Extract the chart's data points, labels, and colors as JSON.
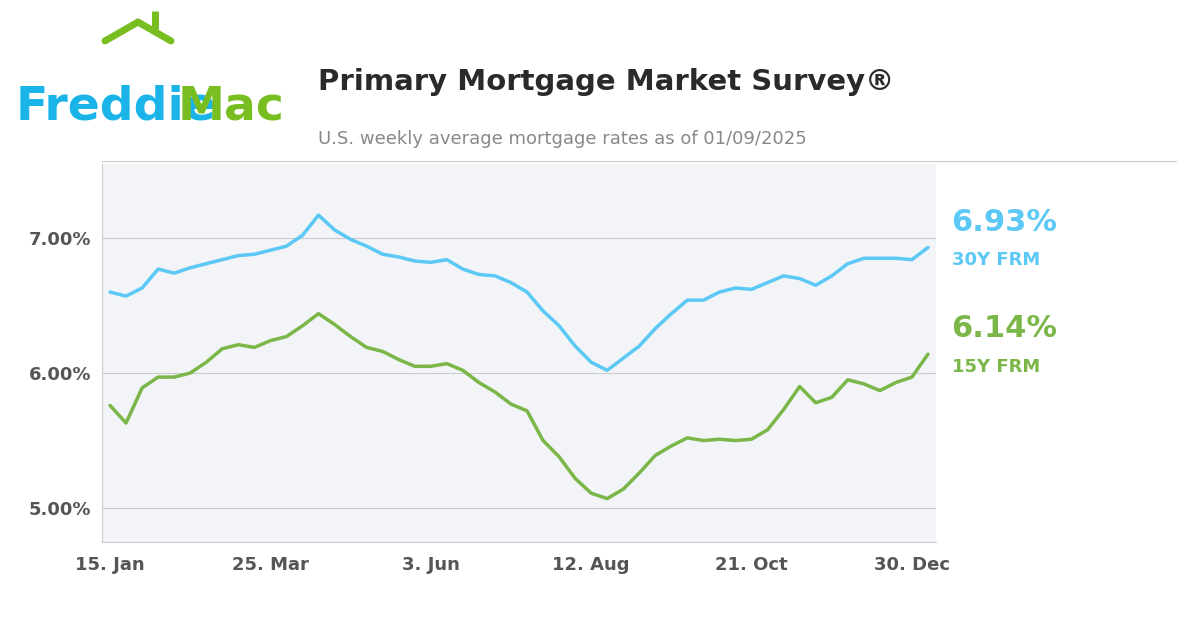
{
  "title": "Primary Mortgage Market Survey®",
  "subtitle": "U.S. weekly average mortgage rates as of 01/09/2025",
  "bg_color": "#ffffff",
  "plot_bg_color": "#f2f4f7",
  "rate_30y_label": "6.93%",
  "rate_30y_sublabel": "30Y FRM",
  "rate_15y_label": "6.14%",
  "rate_15y_sublabel": "15Y FRM",
  "color_30y": "#5bc8f5",
  "color_15y": "#7ab648",
  "color_freddie_blue": "#1ab4e8",
  "color_freddie_green": "#78be20",
  "color_title": "#333333",
  "color_subtitle": "#888888",
  "yticks": [
    5.0,
    6.0,
    7.0
  ],
  "ylim": [
    4.75,
    7.55
  ],
  "xtick_labels": [
    "15. Jan",
    "25. Mar",
    "3. Jun",
    "12. Aug",
    "21. Oct",
    "30. Dec"
  ],
  "xtick_positions": [
    0,
    10,
    20,
    30,
    40,
    50
  ],
  "data_30y": [
    6.6,
    6.57,
    6.63,
    6.77,
    6.74,
    6.78,
    6.81,
    6.84,
    6.87,
    6.88,
    6.91,
    6.94,
    7.02,
    7.17,
    7.06,
    6.99,
    6.94,
    6.88,
    6.86,
    6.83,
    6.82,
    6.84,
    6.77,
    6.73,
    6.72,
    6.67,
    6.6,
    6.46,
    6.35,
    6.2,
    6.08,
    6.02,
    6.11,
    6.2,
    6.33,
    6.44,
    6.54,
    6.54,
    6.6,
    6.63,
    6.62,
    6.67,
    6.72,
    6.7,
    6.65,
    6.72,
    6.81,
    6.85,
    6.85,
    6.85,
    6.84,
    6.93
  ],
  "data_15y": [
    5.76,
    5.63,
    5.89,
    5.97,
    5.97,
    6.0,
    6.08,
    6.18,
    6.21,
    6.19,
    6.24,
    6.27,
    6.35,
    6.44,
    6.36,
    6.27,
    6.19,
    6.16,
    6.1,
    6.05,
    6.05,
    6.07,
    6.02,
    5.93,
    5.86,
    5.77,
    5.72,
    5.5,
    5.38,
    5.22,
    5.11,
    5.07,
    5.14,
    5.26,
    5.39,
    5.46,
    5.52,
    5.5,
    5.51,
    5.5,
    5.51,
    5.58,
    5.73,
    5.9,
    5.78,
    5.82,
    5.95,
    5.92,
    5.87,
    5.93,
    5.97,
    6.14
  ]
}
